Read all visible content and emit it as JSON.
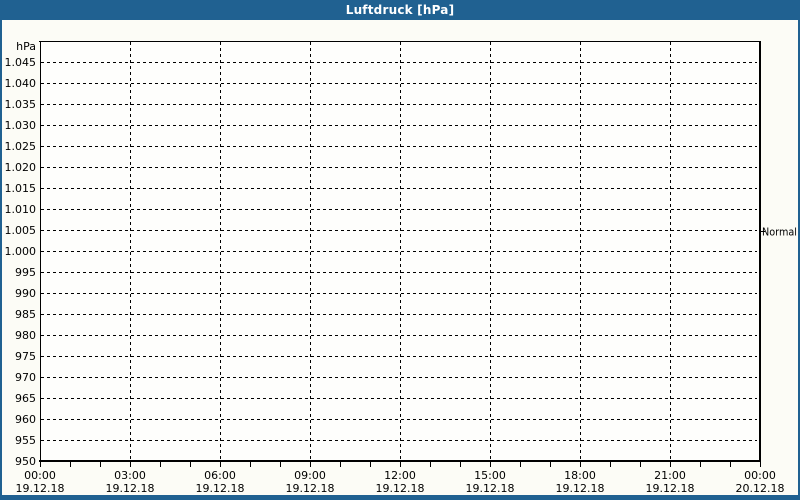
{
  "window": {
    "title": "Luftdruck [hPa]"
  },
  "colors": {
    "accent_blue": "#206191",
    "title_text": "#ffffff",
    "page_bg": "#fcfcf6",
    "plot_bg": "#fefefc",
    "grid_color": "#000000",
    "label_text": "#000000"
  },
  "chart_data": {
    "type": "line",
    "title": "Luftdruck [hPa]",
    "y_axis_unit": "hPa",
    "y_range": [
      950,
      1050
    ],
    "y_tick_step": 5,
    "y_tick_values": [
      950,
      955,
      960,
      965,
      970,
      975,
      980,
      985,
      990,
      995,
      1000,
      1005,
      1010,
      1015,
      1020,
      1025,
      1030,
      1035,
      1040,
      1045
    ],
    "y_tick_labels": [
      "950",
      "955",
      "960",
      "965",
      "970",
      "975",
      "980",
      "985",
      "990",
      "995",
      "1.000",
      "1.005",
      "1.010",
      "1.015",
      "1.020",
      "1.025",
      "1.030",
      "1.035",
      "1.040",
      "1.045"
    ],
    "x_ticks": [
      {
        "time": "00:00",
        "date": "19.12.18"
      },
      {
        "time": "03:00",
        "date": "19.12.18"
      },
      {
        "time": "06:00",
        "date": "19.12.18"
      },
      {
        "time": "09:00",
        "date": "19.12.18"
      },
      {
        "time": "12:00",
        "date": "19.12.18"
      },
      {
        "time": "15:00",
        "date": "19.12.18"
      },
      {
        "time": "18:00",
        "date": "19.12.18"
      },
      {
        "time": "21:00",
        "date": "19.12.18"
      },
      {
        "time": "00:00",
        "date": "20.12.18"
      }
    ],
    "x_minor_ticks_per_major": 3,
    "grid": "dashed",
    "legend": "none",
    "series": [],
    "annotations": [
      {
        "label": "Normal",
        "value": 1005,
        "side": "right"
      }
    ]
  }
}
